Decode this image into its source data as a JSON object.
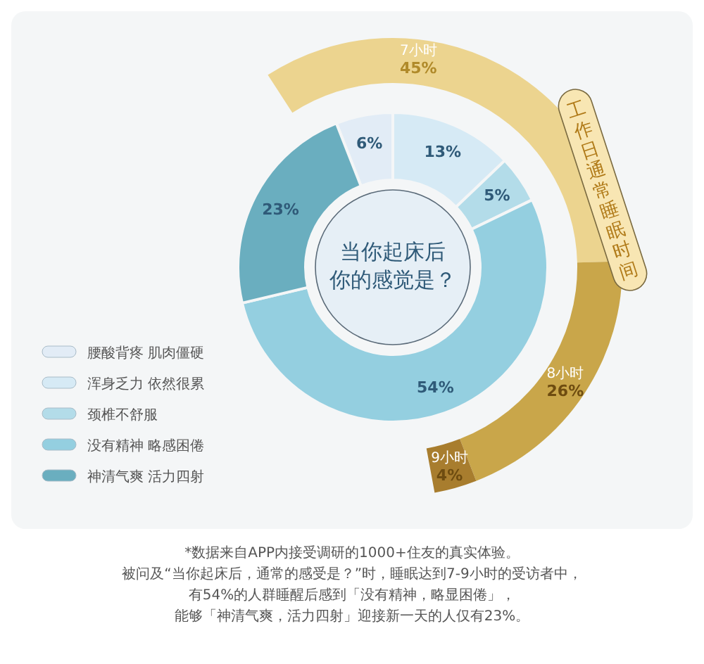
{
  "chart_data": [
    {
      "type": "donut",
      "title": "当你起床后",
      "subtitle": "你的感觉是？",
      "legend": "left",
      "data_labels": true,
      "categories": [
        "腰酸背疼  肌肉僵硬",
        "浑身乏力 依然很累",
        "颈椎不舒服",
        "没有精神  略感困倦",
        "神清气爽  活力四射"
      ],
      "values": [
        6,
        13,
        5,
        54,
        23
      ],
      "value_labels": [
        "6%",
        "13%",
        "5%",
        "54%",
        "23%"
      ],
      "colors": [
        "#e2ecf6",
        "#d6eaf5",
        "#b3dce9",
        "#94cfe0",
        "#6aaebf"
      ],
      "annotations": [
        "*数据来自APP内接受调研的1000+住友的真实体验。",
        "被问及“当你起床后，通常的感受是？”时，睡眠达到7-9小时的受访者中，",
        "有54%的人群睡醒后感到「没有精神，略显困倦」，",
        "能够「神清气爽，活力四射」迎接新一天的人仅有23%。"
      ]
    },
    {
      "type": "donut",
      "title": "工作日通常睡眠时间",
      "data_labels": true,
      "categories": [
        "7小时",
        "8小时",
        "9小时"
      ],
      "values": [
        45,
        26,
        4
      ],
      "value_labels": [
        "45%",
        "26%",
        "4%"
      ],
      "colors": [
        "#ecd48f",
        "#c9a64a",
        "#a87d2e"
      ]
    }
  ]
}
